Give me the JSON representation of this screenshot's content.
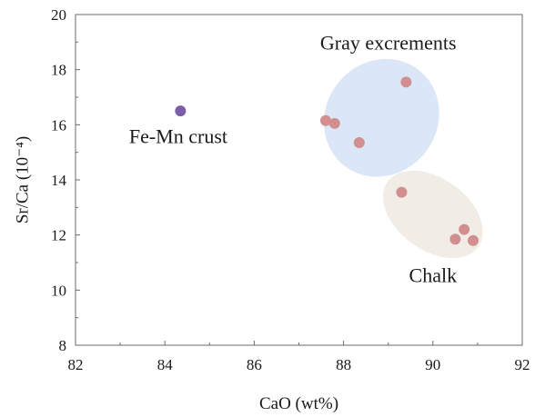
{
  "chart_data": {
    "type": "scatter",
    "title": "",
    "xlabel": "CaO (wt%)",
    "ylabel": "Sr/Ca (10⁻⁴)",
    "xlim": [
      82,
      92
    ],
    "ylim": [
      8,
      20
    ],
    "xticks": [
      82,
      84,
      86,
      88,
      90,
      92
    ],
    "yticks": [
      8,
      10,
      12,
      14,
      16,
      18,
      20
    ],
    "xtick_labels": [
      "82",
      "84",
      "86",
      "88",
      "90",
      "92"
    ],
    "ytick_labels": [
      "8",
      "10",
      "12",
      "14",
      "16",
      "18",
      "20"
    ],
    "grid": false,
    "legend": "none",
    "series": [
      {
        "group": "fe-mn",
        "color": "#7b5ea7",
        "points": [
          {
            "x": 84.35,
            "y": 16.5
          }
        ]
      },
      {
        "group": "gray",
        "color": "#d1908f",
        "points": [
          {
            "x": 89.4,
            "y": 17.55
          },
          {
            "x": 87.6,
            "y": 16.15
          },
          {
            "x": 87.8,
            "y": 16.05
          },
          {
            "x": 88.35,
            "y": 15.35
          }
        ]
      },
      {
        "group": "chalk",
        "color": "#d1908f",
        "points": [
          {
            "x": 89.3,
            "y": 13.55
          },
          {
            "x": 90.7,
            "y": 12.2
          },
          {
            "x": 90.5,
            "y": 11.85
          },
          {
            "x": 90.9,
            "y": 11.8
          }
        ]
      }
    ],
    "regions": [
      {
        "group": "gray",
        "color": "#dbe6f6",
        "cx": 88.85,
        "cy": 16.25,
        "rx": 1.25,
        "ry": 2.2,
        "angle_deg": 37
      },
      {
        "group": "chalk",
        "color": "#f1ede6",
        "cx": 90.0,
        "cy": 12.75,
        "rx": 1.25,
        "ry": 1.3,
        "angle_deg": 36
      }
    ],
    "annotations": [
      {
        "id": "gray",
        "text": "Gray excrements",
        "x": 89.0,
        "y": 19.0
      },
      {
        "id": "fe-mn",
        "text": "Fe-Mn crust",
        "x": 84.3,
        "y": 15.6
      },
      {
        "id": "chalk",
        "text": "Chalk",
        "x": 90.0,
        "y": 10.55
      }
    ]
  }
}
